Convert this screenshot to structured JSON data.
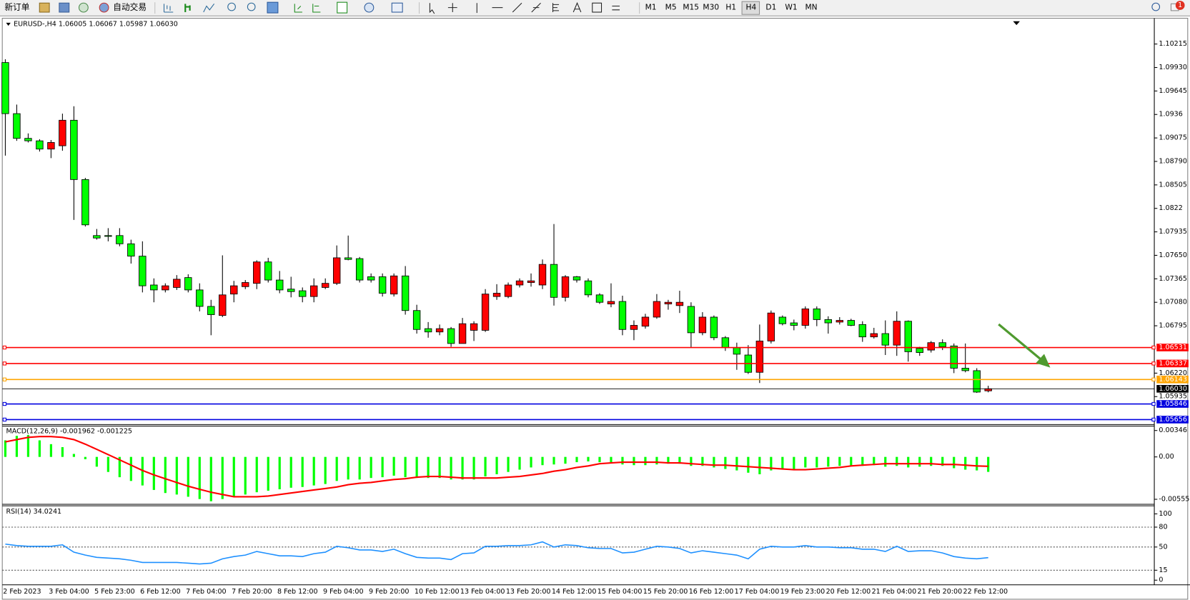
{
  "toolbar": {
    "new_order": "新订单",
    "auto_trading": "自动交易",
    "timeframes": [
      "M1",
      "M5",
      "M15",
      "M30",
      "H1",
      "H4",
      "D1",
      "W1",
      "MN"
    ],
    "notifications": 1
  },
  "chart_data": [
    {
      "type": "candlestick",
      "title": "EURUSD-,H4  1.06005 1.06067 1.05987 1.06030",
      "up_color": "#ff0000",
      "down_color": "#00ff00",
      "categories": [
        "2 Feb 2023",
        null,
        null,
        null,
        "3 Feb 04:00",
        null,
        null,
        null,
        "5 Feb 23:00",
        null,
        null,
        null,
        "6 Feb 12:00",
        null,
        null,
        null,
        "7 Feb 04:00",
        null,
        null,
        null,
        "7 Feb 20:00",
        null,
        null,
        null,
        "8 Feb 12:00",
        null,
        null,
        null,
        "9 Feb 04:00",
        null,
        null,
        null,
        "9 Feb 20:00",
        null,
        null,
        null,
        "10 Feb 12:00",
        null,
        null,
        null,
        "13 Feb 04:00",
        null,
        null,
        null,
        "13 Feb 20:00",
        null,
        null,
        null,
        "14 Feb 12:00",
        null,
        null,
        null,
        "15 Feb 04:00",
        null,
        null,
        null,
        "15 Feb 20:00",
        null,
        null,
        null,
        "16 Feb 12:00",
        null,
        null,
        null,
        "17 Feb 04:00",
        null,
        null,
        null,
        "19 Feb 23:00",
        null,
        null,
        null,
        "20 Feb 12:00",
        null,
        null,
        null,
        "21 Feb 04:00",
        null,
        null,
        null,
        "21 Feb 20:00",
        null,
        null,
        null,
        "22 Feb 12:00",
        null,
        null
      ],
      "open": [
        1.0999,
        1.0937,
        1.0907,
        1.0904,
        1.0894,
        1.0898,
        1.0929,
        1.0857,
        1.0789,
        1.0789,
        1.0789,
        1.0779,
        1.0764,
        1.0729,
        1.0723,
        1.0726,
        1.0738,
        1.0723,
        1.0703,
        1.0692,
        1.0718,
        1.0727,
        1.0731,
        1.0757,
        1.0735,
        1.0724,
        1.0722,
        1.0715,
        1.0726,
        1.0731,
        1.0762,
        1.0761,
        1.0739,
        1.0739,
        1.0718,
        1.074,
        1.0698,
        1.0676,
        1.0672,
        1.0676,
        1.0658,
        1.0674,
        1.0674,
        1.0715,
        1.0715,
        1.0729,
        1.0732,
        1.0729,
        1.0754,
        1.0714,
        1.0739,
        1.0734,
        1.0717,
        1.0706,
        1.0709,
        1.0675,
        1.0679,
        1.069,
        1.0706,
        1.0704,
        1.0703,
        1.0671,
        1.069,
        1.0665,
        1.0653,
        1.0644,
        1.0623,
        1.0661,
        1.069,
        1.0683,
        1.068,
        1.07,
        1.0687,
        1.0684,
        1.0686,
        1.0681,
        1.0666,
        1.067,
        1.0656,
        1.0685,
        1.0652,
        1.065,
        1.0659,
        1.0655,
        1.0628,
        1.0625,
        1.06005
      ],
      "high": [
        1.1003,
        1.0948,
        1.0913,
        1.0906,
        1.0905,
        1.0937,
        1.0946,
        1.0859,
        1.0797,
        1.0798,
        1.0798,
        1.0784,
        1.0782,
        1.0737,
        1.0731,
        1.0741,
        1.0742,
        1.0731,
        1.0711,
        1.0765,
        1.0734,
        1.0735,
        1.0759,
        1.0762,
        1.0746,
        1.0739,
        1.0726,
        1.0737,
        1.0737,
        1.0777,
        1.0789,
        1.0763,
        1.0743,
        1.0743,
        1.0743,
        1.0752,
        1.0705,
        1.0684,
        1.0681,
        1.0678,
        1.0689,
        1.0685,
        1.0724,
        1.073,
        1.0732,
        1.0737,
        1.0743,
        1.076,
        1.0803,
        1.0741,
        1.074,
        1.0737,
        1.0719,
        1.0731,
        1.0716,
        1.0686,
        1.0694,
        1.0718,
        1.0711,
        1.0722,
        1.0708,
        1.0696,
        1.0692,
        1.0667,
        1.0659,
        1.0656,
        1.0681,
        1.0698,
        1.0692,
        1.0687,
        1.0703,
        1.0703,
        1.0691,
        1.069,
        1.0688,
        1.0685,
        1.0677,
        1.0686,
        1.0697,
        1.0686,
        1.0654,
        1.0661,
        1.0663,
        1.0658,
        1.0658,
        1.0628,
        1.06067
      ],
      "low": [
        1.0886,
        1.0904,
        1.0902,
        1.0891,
        1.0883,
        1.0892,
        1.0808,
        1.08,
        1.0784,
        1.0782,
        1.0776,
        1.0755,
        1.072,
        1.0708,
        1.072,
        1.0723,
        1.072,
        1.0697,
        1.0668,
        1.069,
        1.0708,
        1.0724,
        1.0724,
        1.0732,
        1.0719,
        1.0714,
        1.0708,
        1.0708,
        1.0724,
        1.0729,
        1.0759,
        1.0732,
        1.0732,
        1.0715,
        1.0715,
        1.0693,
        1.067,
        1.0665,
        1.0668,
        1.0654,
        1.0658,
        1.0661,
        1.0672,
        1.0711,
        1.0713,
        1.0726,
        1.0727,
        1.0724,
        1.0704,
        1.0709,
        1.0732,
        1.0714,
        1.0706,
        1.0702,
        1.0668,
        1.0662,
        1.0676,
        1.0688,
        1.0699,
        1.0695,
        1.0653,
        1.0668,
        1.0662,
        1.0649,
        1.0626,
        1.0621,
        1.061,
        1.0658,
        1.068,
        1.0674,
        1.0676,
        1.0679,
        1.067,
        1.0681,
        1.0679,
        1.066,
        1.0664,
        1.0644,
        1.0643,
        1.0636,
        1.0643,
        1.0647,
        1.065,
        1.0622,
        1.0623,
        1.0598,
        1.05987
      ],
      "close": [
        1.0937,
        1.0907,
        1.0904,
        1.0894,
        1.0902,
        1.0929,
        1.0857,
        1.0802,
        1.0786,
        1.0788,
        1.0779,
        1.0764,
        1.0728,
        1.0723,
        1.0728,
        1.0736,
        1.0723,
        1.0703,
        1.0693,
        1.0717,
        1.0728,
        1.0732,
        1.0757,
        1.0735,
        1.0723,
        1.0721,
        1.0715,
        1.0728,
        1.0731,
        1.0762,
        1.076,
        1.0735,
        1.0735,
        1.0719,
        1.074,
        1.0698,
        1.0675,
        1.0672,
        1.0676,
        1.0658,
        1.0682,
        1.0682,
        1.0718,
        1.0719,
        1.0729,
        1.0734,
        1.0734,
        1.0754,
        1.0714,
        1.0739,
        1.0735,
        1.0717,
        1.0708,
        1.0709,
        1.0675,
        1.068,
        1.069,
        1.0709,
        1.0708,
        1.0708,
        1.0671,
        1.069,
        1.0665,
        1.0653,
        1.0645,
        1.0623,
        1.0661,
        1.0695,
        1.0682,
        1.068,
        1.07,
        1.0687,
        1.0683,
        1.0686,
        1.068,
        1.0666,
        1.067,
        1.0656,
        1.0685,
        1.0648,
        1.0647,
        1.0659,
        1.0654,
        1.0628,
        1.0625,
        1.0599,
        1.0603
      ],
      "ylim": [
        1.05605,
        1.10519
      ],
      "yticks": [
        1.10215,
        {
          "value": 1.0993,
          "label": "1.09930"
        },
        1.09645,
        1.0936,
        1.09075,
        {
          "value": 1.0879,
          "label": "1.08790"
        },
        1.08505,
        1.0822,
        1.07935,
        {
          "value": 1.0765,
          "label": "1.07650"
        },
        1.07365,
        {
          "value": 1.0708,
          "label": "1.07080"
        },
        1.06795,
        {
          "value": 1.0622,
          "label": "1.06220"
        },
        1.05935
      ],
      "levels": [
        {
          "value": 1.06531,
          "color": "#ff0000"
        },
        {
          "value": 1.06337,
          "color": "#ff0000"
        },
        {
          "value": 1.06143,
          "color": "#ffa500"
        },
        {
          "value": 1.05846,
          "color": "#0000e0"
        },
        {
          "value": 1.05656,
          "color": "#0000e0"
        }
      ],
      "current_price": {
        "value": 1.0603,
        "label": "1.06030"
      }
    },
    {
      "type": "macd",
      "title": "MACD(12,26,9) -0.001962 -0.001225",
      "histogram_color": "#00ff00",
      "signal_color": "#ff0000",
      "histogram": [
        0.00217,
        0.00276,
        0.00286,
        0.00217,
        0.00167,
        0.00128,
        0.00039,
        -0.0003,
        -0.00128,
        -0.00197,
        -0.00266,
        -0.00315,
        -0.00374,
        -0.00433,
        -0.00473,
        -0.00493,
        -0.00522,
        -0.00552,
        -0.00581,
        -0.00552,
        -0.00522,
        -0.00493,
        -0.00463,
        -0.00443,
        -0.00424,
        -0.00404,
        -0.00394,
        -0.00374,
        -0.00355,
        -0.00315,
        -0.00296,
        -0.00296,
        -0.00276,
        -0.00266,
        -0.00246,
        -0.00266,
        -0.00276,
        -0.00276,
        -0.00276,
        -0.00296,
        -0.00296,
        -0.00296,
        -0.00256,
        -0.00227,
        -0.00197,
        -0.00167,
        -0.00138,
        -0.00108,
        -0.00099,
        -0.00089,
        -0.00069,
        -0.00059,
        -0.00069,
        -0.00069,
        -0.00099,
        -0.00108,
        -0.00108,
        -0.00099,
        -0.00089,
        -0.00089,
        -0.00118,
        -0.00118,
        -0.00138,
        -0.00158,
        -0.00177,
        -0.00207,
        -0.00227,
        -0.00177,
        -0.00158,
        -0.00158,
        -0.00138,
        -0.00138,
        -0.00128,
        -0.00118,
        -0.00118,
        -0.00118,
        -0.00108,
        -0.00128,
        -0.00118,
        -0.00138,
        -0.00128,
        -0.00118,
        -0.00118,
        -0.00148,
        -0.00167,
        -0.00177,
        -0.001962
      ],
      "signal": [
        0.00197,
        0.00227,
        0.00256,
        0.00266,
        0.00266,
        0.00256,
        0.00227,
        0.00167,
        0.00099,
        0.0003,
        -0.00039,
        -0.00108,
        -0.00177,
        -0.00236,
        -0.00286,
        -0.00335,
        -0.00384,
        -0.00424,
        -0.00463,
        -0.00493,
        -0.00522,
        -0.00522,
        -0.00522,
        -0.00512,
        -0.00493,
        -0.00473,
        -0.00453,
        -0.00433,
        -0.00414,
        -0.00394,
        -0.00364,
        -0.00345,
        -0.00335,
        -0.00315,
        -0.00296,
        -0.00286,
        -0.00266,
        -0.00256,
        -0.00256,
        -0.00266,
        -0.00276,
        -0.00276,
        -0.00276,
        -0.00276,
        -0.00266,
        -0.00256,
        -0.00236,
        -0.00217,
        -0.00187,
        -0.00167,
        -0.00138,
        -0.00118,
        -0.00089,
        -0.00079,
        -0.00069,
        -0.00069,
        -0.00069,
        -0.00069,
        -0.00079,
        -0.00079,
        -0.00089,
        -0.00099,
        -0.00108,
        -0.00108,
        -0.00118,
        -0.00128,
        -0.00138,
        -0.00148,
        -0.00158,
        -0.00167,
        -0.00167,
        -0.00158,
        -0.00148,
        -0.00138,
        -0.00118,
        -0.00108,
        -0.00099,
        -0.00089,
        -0.00089,
        -0.00089,
        -0.00089,
        -0.00089,
        -0.00099,
        -0.00099,
        -0.00108,
        -0.00118,
        -0.001225
      ],
      "ylim": [
        -0.00611,
        0.00394
      ],
      "yticks": [
        0.00346,
        {
          "value": 0,
          "label": "0.00"
        },
        -0.005553
      ]
    },
    {
      "type": "line",
      "title": "RSI(14) 34.0241",
      "color": "#1e90ff",
      "values": [
        54.4,
        52.2,
        51.1,
        51.1,
        51.1,
        53.3,
        42.2,
        37.8,
        34.4,
        33.3,
        32.2,
        30,
        26.7,
        26.7,
        26.7,
        26.7,
        25.6,
        24.4,
        25.6,
        32.2,
        35.6,
        37.8,
        43.3,
        40,
        36.7,
        36.7,
        35.6,
        40,
        42.2,
        51.1,
        48.9,
        45.6,
        45.6,
        43.3,
        46.7,
        40,
        34.4,
        33.3,
        33.3,
        31.1,
        40,
        41.1,
        51.1,
        51.1,
        52.2,
        52.2,
        53.3,
        57.8,
        50,
        53.3,
        52.2,
        48.9,
        47.8,
        47.8,
        41.1,
        42.2,
        46.7,
        51.1,
        50,
        47.8,
        41.1,
        44.4,
        42.2,
        40,
        37.8,
        32.2,
        46.7,
        51.1,
        50,
        50,
        52.2,
        50,
        50,
        48.9,
        48.9,
        46.7,
        46.7,
        43.3,
        51.1,
        43.3,
        44.4,
        44.4,
        41.1,
        35.6,
        33.3,
        32.2,
        34.0241
      ],
      "ylim": [
        -7,
        111
      ],
      "yticks": [
        100,
        80,
        50,
        15,
        0
      ],
      "levels": [
        80,
        50,
        15
      ]
    }
  ]
}
